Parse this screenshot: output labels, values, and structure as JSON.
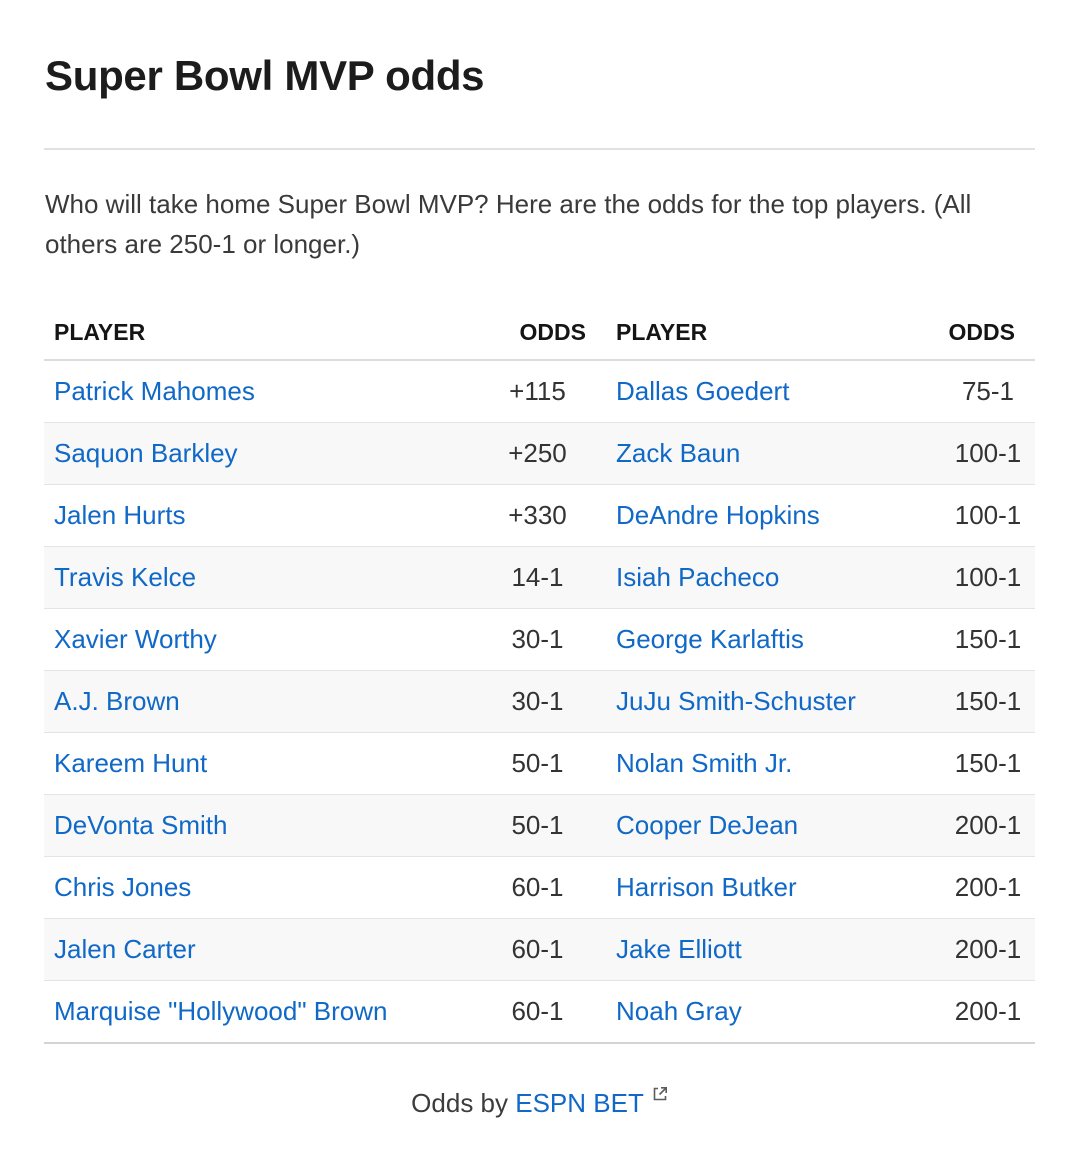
{
  "title": "Super Bowl MVP odds",
  "intro": "Who will take home Super Bowl MVP? Here are the odds for the top players. (All others are 250-1 or longer.)",
  "table": {
    "headers": {
      "player_left": "PLAYER",
      "odds_left": "ODDS",
      "player_right": "PLAYER",
      "odds_right": "ODDS"
    },
    "rows": [
      {
        "player_left": "Patrick Mahomes",
        "odds_left": "+115",
        "player_right": "Dallas Goedert",
        "odds_right": "75-1"
      },
      {
        "player_left": "Saquon Barkley",
        "odds_left": "+250",
        "player_right": "Zack Baun",
        "odds_right": "100-1"
      },
      {
        "player_left": "Jalen Hurts",
        "odds_left": "+330",
        "player_right": "DeAndre Hopkins",
        "odds_right": "100-1"
      },
      {
        "player_left": "Travis Kelce",
        "odds_left": "14-1",
        "player_right": "Isiah Pacheco",
        "odds_right": "100-1"
      },
      {
        "player_left": "Xavier Worthy",
        "odds_left": "30-1",
        "player_right": "George Karlaftis",
        "odds_right": "150-1"
      },
      {
        "player_left": "A.J. Brown",
        "odds_left": "30-1",
        "player_right": "JuJu Smith-Schuster",
        "odds_right": "150-1"
      },
      {
        "player_left": "Kareem Hunt",
        "odds_left": "50-1",
        "player_right": "Nolan Smith Jr.",
        "odds_right": "150-1"
      },
      {
        "player_left": "DeVonta Smith",
        "odds_left": "50-1",
        "player_right": "Cooper DeJean",
        "odds_right": "200-1"
      },
      {
        "player_left": "Chris Jones",
        "odds_left": "60-1",
        "player_right": "Harrison Butker",
        "odds_right": "200-1"
      },
      {
        "player_left": "Jalen Carter",
        "odds_left": "60-1",
        "player_right": "Jake Elliott",
        "odds_right": "200-1"
      },
      {
        "player_left": "Marquise \"Hollywood\" Brown",
        "odds_left": "60-1",
        "player_right": "Noah Gray",
        "odds_right": "200-1"
      }
    ]
  },
  "footer": {
    "prefix": "Odds by",
    "link_label": "ESPN BET",
    "link_icon": "external-link-icon"
  },
  "colors": {
    "link": "#1068c7",
    "text": "#222222",
    "divider": "#e1e1e1",
    "row_alt": "#f8f8f8"
  }
}
